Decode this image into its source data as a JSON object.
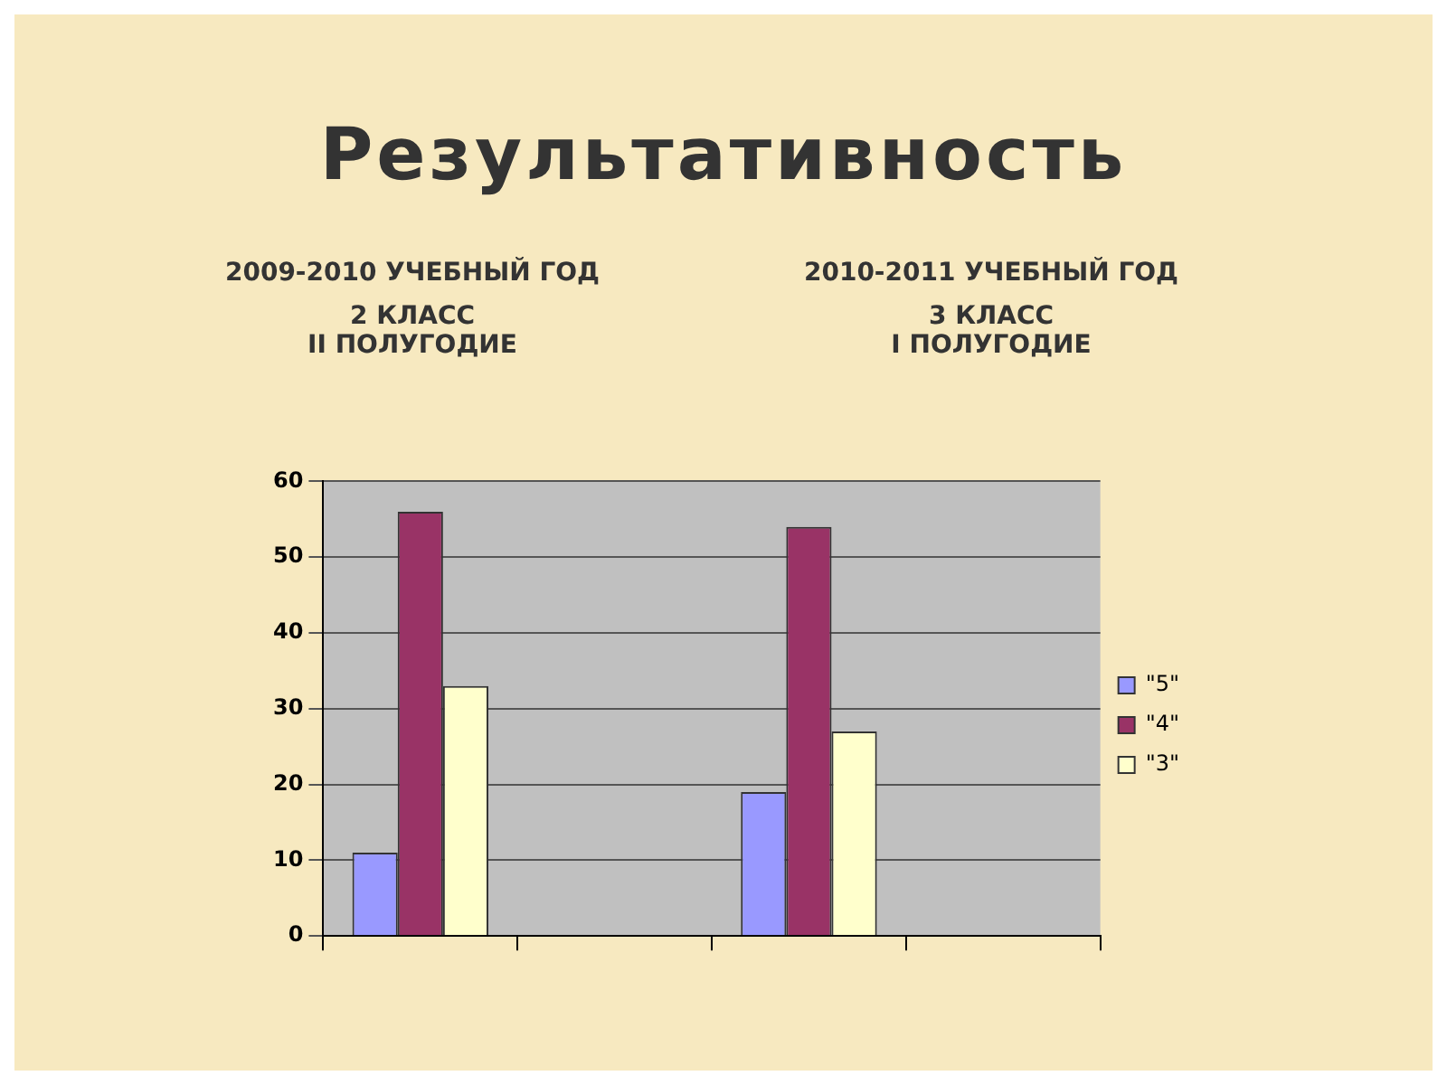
{
  "chart_data": {
    "type": "bar",
    "title": "Результативность",
    "annotations": [
      "2009-2010 УЧЕБНЫЙ ГОД",
      "2010-2011 УЧЕБНЫЙ ГОД",
      "2 КЛАСС\nII ПОЛУГОДИЕ",
      "3 КЛАСС\nI ПОЛУГОДИЕ"
    ],
    "categories": [
      null,
      null,
      null,
      null
    ],
    "series": [
      {
        "name": "\"5\"",
        "color": "#9999ff",
        "values": [
          11,
          null,
          19,
          null
        ]
      },
      {
        "name": "\"4\"",
        "color": "#993366",
        "values": [
          56,
          null,
          54,
          null
        ]
      },
      {
        "name": "\"3\"",
        "color": "#ffffcc",
        "values": [
          33,
          null,
          27,
          null
        ]
      }
    ],
    "ylim": [
      0,
      60
    ],
    "yticks": [
      0,
      10,
      20,
      30,
      40,
      50,
      60
    ],
    "grid": "y",
    "legend": "right"
  }
}
